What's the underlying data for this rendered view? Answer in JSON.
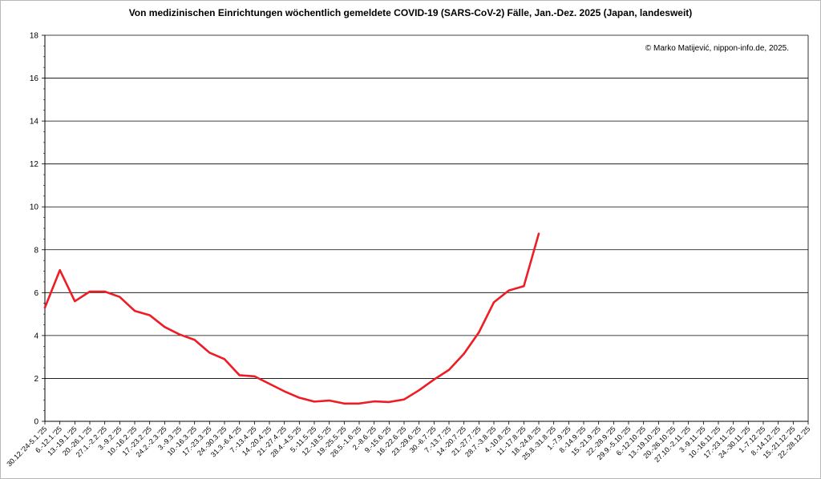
{
  "chart_data": {
    "type": "line",
    "title": "Von medizinischen Einrichtungen wöchentlich gemeldete COVID-19 (SARS-CoV-2) Fälle, Jan.-Dez. 2025 (Japan, landesweit)",
    "annotation": "© Marko Matijević, nippon-info.de, 2025.",
    "ylim": [
      0,
      18
    ],
    "yticks": [
      0,
      2,
      4,
      6,
      8,
      10,
      12,
      14,
      16,
      18
    ],
    "grid": true,
    "line_color": "#ee1c25",
    "categories": [
      "30.12.'24-5.1.'25",
      "6.-12.1.'25",
      "13.-19.1.'25",
      "20.-26.1.'25",
      "27.1.-2.2.'25",
      "3.-9.2.'25",
      "10.-16.2.'25",
      "17.-23.2.'25",
      "24.2.-2.3.'25",
      "3.-9.3.'25",
      "10.-16.3.'25",
      "17.-23.3.'25",
      "24.-30.3.'25",
      "31.3.-6.4.'25",
      "7.-13.4.'25",
      "14.-20.4.'25",
      "21.-27.4.'25",
      "28.4.-4.5.'25",
      "5.-11.5.'25",
      "12.-18.5.'25",
      "19.-25.5.'25",
      "26.5.-1.6.'25",
      "2.-8.6.'25",
      "9.-15.6.'25",
      "16.-22.6.'25",
      "23.-29.6.'25",
      "30.-6.7.'25",
      "7.-13.7.'25",
      "14.-20.7.'25",
      "21.-27.7.'25",
      "28.7.-3.8.'25",
      "4.-10.8.'25",
      "11.-17.8.'25",
      "18.-24.8.'25",
      "25.8.-31.8.'25",
      "1.-7.9.'25",
      "8.-14.9.'25",
      "15.-21.9.'25",
      "22.-28.9.'25",
      "29.9.-5.10.'25",
      "6.-12.10.'25",
      "13.-19.10.'25",
      "20.-26.10.'25",
      "27.10.-2.11.'25",
      "3.-9.11.'25",
      "10.-16.11.'25",
      "17.-23.11.'25",
      "24.-30.11.'25",
      "1.-7.12.'25",
      "8.-14.12.'25",
      "15.-21.12.'25",
      "22.-28.12.'25"
    ],
    "values": [
      5.3,
      7.05,
      5.6,
      6.05,
      6.05,
      5.8,
      5.15,
      4.95,
      4.4,
      4.05,
      3.8,
      3.2,
      2.9,
      2.15,
      2.1,
      1.75,
      1.4,
      1.1,
      0.92,
      0.97,
      0.83,
      0.83,
      0.93,
      0.9,
      1.02,
      1.45,
      1.95,
      2.4,
      3.15,
      4.15,
      5.55,
      6.1,
      6.3,
      8.75,
      null,
      null,
      null,
      null,
      null,
      null,
      null,
      null,
      null,
      null,
      null,
      null,
      null,
      null,
      null,
      null,
      null,
      null
    ]
  }
}
